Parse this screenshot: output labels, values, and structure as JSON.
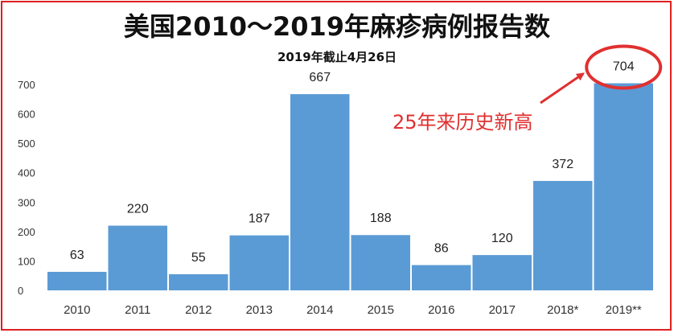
{
  "chart_data": {
    "type": "bar",
    "title": "美国2010～2019年麻疹病例报告数",
    "subtitle": "2019年截止4月26日",
    "categories": [
      "2010",
      "2011",
      "2012",
      "2013",
      "2014",
      "2015",
      "2016",
      "2017",
      "2018*",
      "2019**"
    ],
    "values": [
      63,
      220,
      55,
      187,
      667,
      188,
      86,
      120,
      372,
      704
    ],
    "yticks": [
      0,
      100,
      200,
      300,
      400,
      500,
      600,
      700
    ],
    "ylim": [
      0,
      720
    ],
    "grid": false,
    "bar_color": "#5b9bd5",
    "annotation": {
      "text": "25年来历史新高",
      "color": "#e03030",
      "target_category": "2019**"
    }
  }
}
